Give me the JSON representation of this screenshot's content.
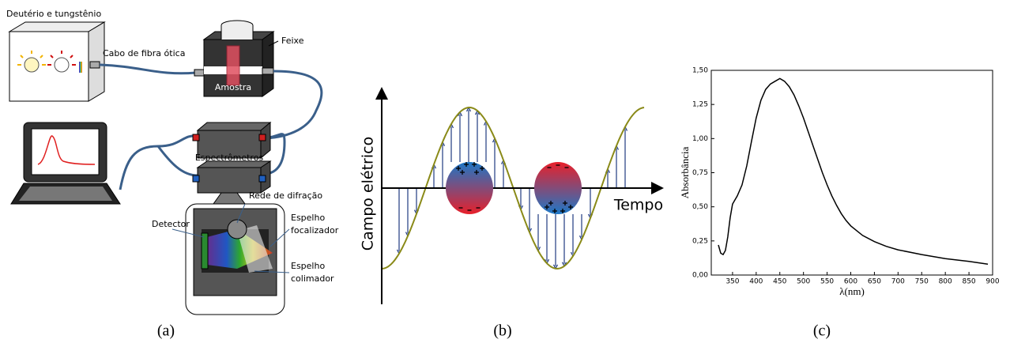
{
  "panel_a": {
    "caption": "(a)",
    "labels": [
      {
        "lines": [
          "Deutério e tungstênio"
        ]
      },
      {
        "lines": [
          "Cabo de fibra ótica"
        ]
      },
      {
        "lines": [
          "Feixe"
        ]
      },
      {
        "lines": [
          "Amostra"
        ]
      },
      {
        "lines": [
          "Espectrômetros"
        ]
      },
      {
        "lines": [
          "Rede de difração"
        ]
      },
      {
        "lines": [
          "Espelho",
          "focalizador"
        ]
      },
      {
        "lines": [
          "Detector"
        ]
      },
      {
        "lines": [
          "Espelho",
          "colimador"
        ]
      }
    ]
  },
  "panel_b": {
    "caption": "(b)",
    "y_label": "Campo elétrico",
    "x_label": "Tempo"
  },
  "chart_data": {
    "type": "line",
    "caption": "(c)",
    "x_label": "λ(nm)",
    "y_label": "Absorbância",
    "x": [
      320,
      325,
      330,
      335,
      340,
      345,
      350,
      360,
      370,
      380,
      390,
      400,
      410,
      420,
      430,
      440,
      450,
      460,
      470,
      480,
      490,
      500,
      510,
      520,
      530,
      540,
      550,
      560,
      570,
      580,
      590,
      600,
      625,
      650,
      675,
      700,
      750,
      800,
      850,
      890
    ],
    "series": [
      {
        "name": "Absorbância",
        "color": "#000000",
        "values": [
          0.22,
          0.16,
          0.15,
          0.18,
          0.28,
          0.42,
          0.52,
          0.58,
          0.66,
          0.8,
          0.98,
          1.15,
          1.28,
          1.36,
          1.4,
          1.42,
          1.44,
          1.42,
          1.38,
          1.32,
          1.24,
          1.15,
          1.05,
          0.95,
          0.85,
          0.75,
          0.66,
          0.58,
          0.51,
          0.45,
          0.4,
          0.36,
          0.29,
          0.245,
          0.21,
          0.185,
          0.15,
          0.12,
          0.1,
          0.08
        ]
      }
    ],
    "xlim": [
      305,
      900
    ],
    "ylim": [
      0,
      1.5
    ],
    "xticks": [
      350,
      400,
      450,
      500,
      550,
      600,
      650,
      700,
      750,
      800,
      850,
      900
    ],
    "yticks": [
      {
        "value": 0,
        "label": "0,00"
      },
      {
        "value": 0.25,
        "label": "0,25"
      },
      {
        "value": 0.5,
        "label": "0,50"
      },
      {
        "value": 0.75,
        "label": "0,75"
      },
      {
        "value": 1,
        "label": "1,00"
      },
      {
        "value": 1.25,
        "label": "1,25"
      },
      {
        "value": 1.5,
        "label": "1,50"
      }
    ]
  }
}
